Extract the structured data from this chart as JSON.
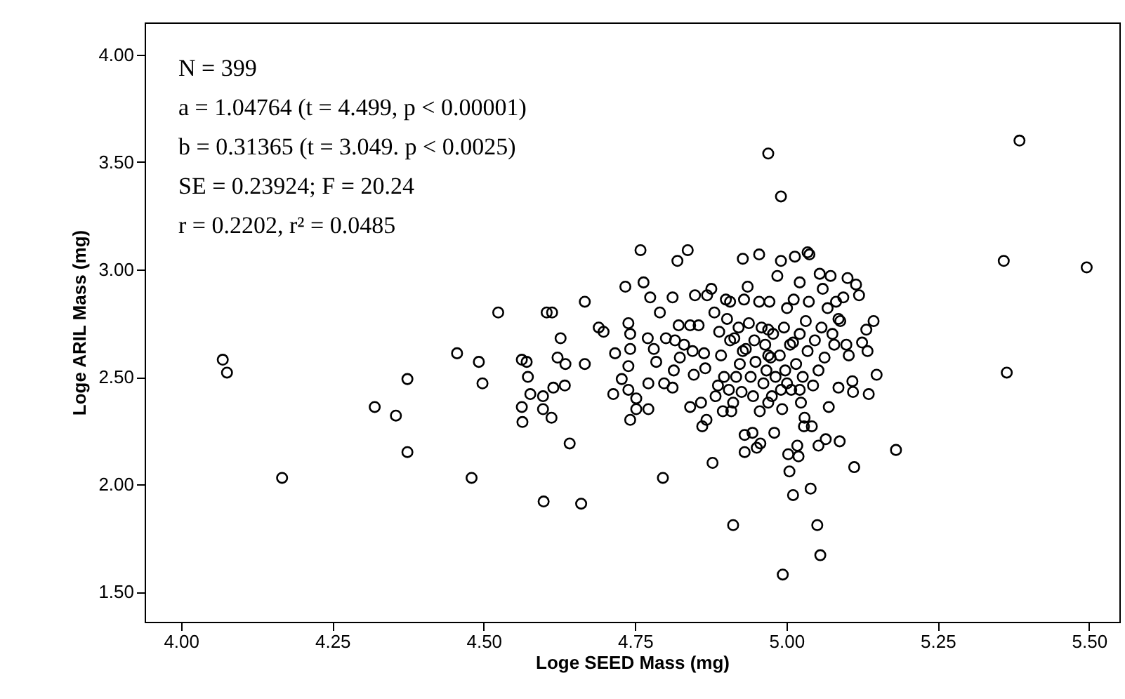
{
  "chart_data": {
    "type": "scatter",
    "xlabel": "Loge SEED Mass (mg)",
    "ylabel": "Loge ARIL Mass (mg)",
    "annotations": [
      "N = 399",
      "a = 1.04764 (t = 4.499, p < 0.00001)",
      "b = 0.31365 (t = 3.049. p < 0.0025)",
      "SE = 0.23924; F = 20.24",
      "r = 0.2202, r² = 0.0485"
    ],
    "xlim": [
      3.94,
      5.55
    ],
    "ylim": [
      1.36,
      4.15
    ],
    "xticks": [
      {
        "value": 4,
        "label": "4.00"
      },
      {
        "value": 4.25,
        "label": "4.25"
      },
      {
        "value": 4.5,
        "label": "4.50"
      },
      {
        "value": 4.75,
        "label": "4.75"
      },
      {
        "value": 5,
        "label": "5.00"
      },
      {
        "value": 5.25,
        "label": "5.25"
      },
      {
        "value": 5.5,
        "label": "5.50"
      }
    ],
    "yticks": [
      {
        "value": 1.5,
        "label": "1.50"
      },
      {
        "value": 2,
        "label": "2.00"
      },
      {
        "value": 2.5,
        "label": "2.50"
      },
      {
        "value": 3,
        "label": "3.00"
      },
      {
        "value": 3.5,
        "label": "3.50"
      },
      {
        "value": 4,
        "label": "4.00"
      }
    ],
    "marker": "circle",
    "grid": false,
    "series": [
      {
        "color": "#000000",
        "x": [
          5.385,
          4.97,
          4.991,
          5.359,
          5.496,
          5.364,
          4.069,
          4.076,
          4.167,
          4.32,
          4.355,
          4.374,
          4.374,
          4.456,
          4.48,
          4.492,
          4.498,
          4.524,
          4.563,
          4.571,
          4.573,
          4.563,
          4.564,
          4.577,
          4.598,
          4.598,
          4.599,
          4.612,
          4.615,
          4.604,
          4.613,
          4.622,
          4.627,
          4.635,
          4.634,
          4.642,
          4.661,
          4.667,
          4.667,
          4.69,
          4.698,
          4.714,
          4.717,
          4.728,
          4.734,
          4.739,
          4.742,
          4.742,
          4.739,
          4.739,
          4.742,
          4.752,
          4.752,
          4.759,
          4.764,
          4.771,
          4.775,
          4.772,
          4.781,
          4.785,
          4.772,
          4.791,
          4.796,
          4.798,
          4.801,
          4.812,
          4.812,
          4.814,
          4.82,
          4.837,
          4.816,
          4.822,
          4.824,
          4.831,
          4.841,
          4.841,
          4.845,
          4.847,
          4.849,
          4.855,
          4.859,
          4.861,
          4.864,
          4.866,
          4.868,
          4.869,
          4.876,
          4.878,
          4.881,
          4.883,
          4.887,
          4.889,
          4.892,
          4.895,
          4.897,
          4.9,
          4.902,
          4.905,
          4.907,
          4.909,
          4.912,
          4.912,
          4.914,
          4.917,
          4.921,
          4.923,
          4.926,
          4.928,
          4.93,
          4.931,
          4.931,
          4.933,
          4.936,
          4.938,
          4.941,
          4.944,
          4.945,
          4.947,
          4.949,
          4.951,
          4.955,
          4.955,
          4.956,
          4.957,
          4.959,
          4.962,
          4.965,
          4.967,
          4.97,
          4.972,
          4.974,
          4.976,
          4.978,
          4.98,
          4.982,
          4.985,
          4.989,
          4.991,
          4.993,
          4.994,
          4.996,
          4.998,
          5.001,
          5.003,
          5.005,
          5.006,
          5.008,
          5.011,
          5.012,
          5.014,
          5.016,
          5.018,
          5.02,
          5.022,
          5.022,
          5.024,
          5.027,
          5.029,
          5.03,
          5.032,
          5.035,
          5.038,
          5.035,
          5.037,
          5.04,
          5.042,
          5.044,
          5.047,
          5.051,
          5.053,
          5.053,
          5.055,
          5.056,
          5.058,
          5.06,
          5.063,
          5.065,
          5.068,
          5.07,
          5.073,
          5.076,
          5.079,
          5.082,
          5.086,
          5.088,
          5.089,
          5.094,
          5.099,
          5.101,
          5.103,
          5.109,
          5.112,
          5.115,
          5.12,
          5.125,
          5.132,
          5.134,
          5.136,
          5.144,
          5.149,
          5.181,
          5.11,
          5.086,
          4.907,
          4.928,
          4.97,
          5.011,
          4.991,
          5.022,
          4.97,
          5.001
        ],
        "values": [
          3.6,
          3.54,
          3.34,
          3.04,
          3.01,
          2.52,
          2.58,
          2.52,
          2.03,
          2.36,
          2.32,
          2.49,
          2.15,
          2.61,
          2.03,
          2.57,
          2.47,
          2.8,
          2.58,
          2.57,
          2.5,
          2.36,
          2.29,
          2.42,
          2.41,
          2.35,
          1.92,
          2.31,
          2.45,
          2.8,
          2.8,
          2.59,
          2.68,
          2.56,
          2.46,
          2.19,
          1.91,
          2.56,
          2.85,
          2.73,
          2.71,
          2.42,
          2.61,
          2.49,
          2.92,
          2.75,
          2.7,
          2.63,
          2.55,
          2.44,
          2.3,
          2.4,
          2.35,
          3.09,
          2.94,
          2.68,
          2.87,
          2.47,
          2.63,
          2.57,
          2.35,
          2.8,
          2.03,
          2.47,
          2.68,
          2.45,
          2.87,
          2.53,
          3.04,
          3.09,
          2.67,
          2.74,
          2.59,
          2.65,
          2.36,
          2.74,
          2.62,
          2.51,
          2.88,
          2.74,
          2.38,
          2.27,
          2.61,
          2.54,
          2.3,
          2.88,
          2.91,
          2.1,
          2.8,
          2.41,
          2.46,
          2.71,
          2.6,
          2.34,
          2.5,
          2.86,
          2.77,
          2.44,
          2.85,
          2.34,
          2.38,
          1.81,
          2.68,
          2.5,
          2.73,
          2.56,
          2.43,
          3.05,
          2.86,
          2.23,
          2.15,
          2.63,
          2.92,
          2.75,
          2.5,
          2.24,
          2.41,
          2.67,
          2.57,
          2.17,
          3.07,
          2.85,
          2.34,
          2.19,
          2.73,
          2.47,
          2.65,
          2.53,
          2.38,
          2.85,
          2.59,
          2.41,
          2.7,
          2.24,
          2.5,
          2.97,
          2.6,
          3.04,
          2.35,
          1.58,
          2.73,
          2.53,
          2.82,
          2.14,
          2.06,
          2.65,
          2.44,
          1.95,
          2.86,
          3.06,
          2.56,
          2.18,
          2.13,
          2.7,
          2.94,
          2.38,
          2.5,
          2.27,
          2.31,
          2.76,
          3.08,
          3.07,
          2.62,
          2.85,
          1.98,
          2.27,
          2.46,
          2.67,
          1.81,
          2.18,
          2.53,
          2.98,
          1.67,
          2.73,
          2.91,
          2.59,
          2.21,
          2.82,
          2.36,
          2.97,
          2.7,
          2.65,
          2.85,
          2.45,
          2.2,
          2.76,
          2.87,
          2.65,
          2.96,
          2.6,
          2.48,
          2.08,
          2.93,
          2.88,
          2.66,
          2.72,
          2.62,
          2.42,
          2.76,
          2.51,
          2.16,
          2.43,
          2.77,
          2.67,
          2.62,
          2.6,
          2.66,
          2.44,
          2.44,
          2.72,
          2.47
        ]
      }
    ]
  }
}
